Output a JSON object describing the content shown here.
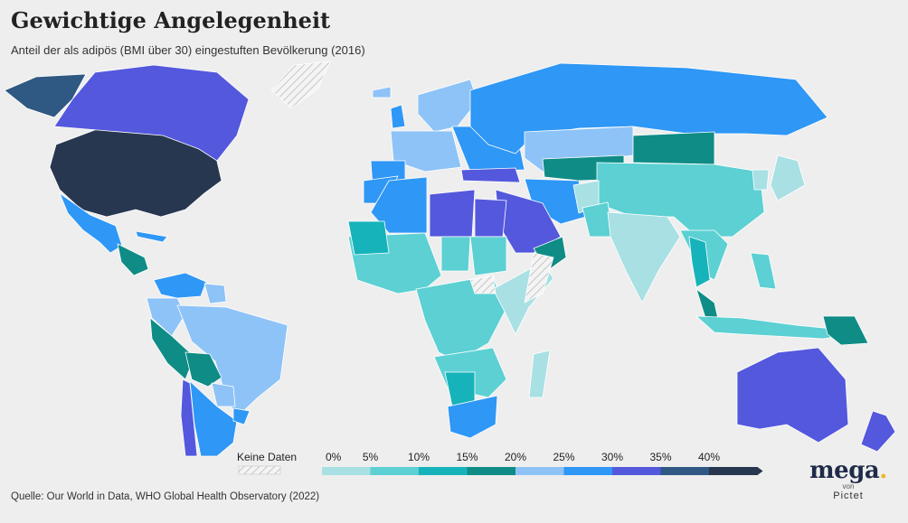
{
  "title": "Gewichtige Angelegenheit",
  "subtitle": "Anteil der als adipös (BMI über 30) eingestuften Bevölkerung (2016)",
  "source": "Quelle: Our World in Data, WHO Global Health Observatory (2022)",
  "legend": {
    "no_data_label": "Keine Daten",
    "ticks": [
      "0%",
      "5%",
      "10%",
      "15%",
      "20%",
      "25%",
      "30%",
      "35%",
      "40%"
    ],
    "colors": [
      "#a8e0e4",
      "#5cd0d3",
      "#17b3bb",
      "#0f8c86",
      "#8ec3f7",
      "#2f97f5",
      "#5458dd",
      "#2f5882",
      "#283750"
    ]
  },
  "logo": {
    "word": "mega",
    "dot": ".",
    "von": "von",
    "brand": "Pictet"
  },
  "regions": [
    {
      "name": "Nordamerika (USA)",
      "bin": 8
    },
    {
      "name": "Alaska",
      "bin": 7
    },
    {
      "name": "Kanada",
      "bin": 6
    },
    {
      "name": "Grönland",
      "bin": -1
    },
    {
      "name": "Mexiko",
      "bin": 5
    },
    {
      "name": "Zentralamerika",
      "bin": 3
    },
    {
      "name": "Kuba",
      "bin": 5
    },
    {
      "name": "Venezuela",
      "bin": 5
    },
    {
      "name": "Kolumbien",
      "bin": 4
    },
    {
      "name": "Guyana",
      "bin": 4
    },
    {
      "name": "Brasilien",
      "bin": 4
    },
    {
      "name": "Peru",
      "bin": 3
    },
    {
      "name": "Bolivien",
      "bin": 3
    },
    {
      "name": "Paraguay",
      "bin": 4
    },
    {
      "name": "Argentinien",
      "bin": 5
    },
    {
      "name": "Chile",
      "bin": 6
    },
    {
      "name": "Uruguay",
      "bin": 5
    },
    {
      "name": "Island",
      "bin": 4
    },
    {
      "name": "Großbritannien",
      "bin": 5
    },
    {
      "name": "Skandinavien",
      "bin": 4
    },
    {
      "name": "Westeuropa",
      "bin": 4
    },
    {
      "name": "Osteuropa",
      "bin": 5
    },
    {
      "name": "Spanien/Portugal",
      "bin": 5
    },
    {
      "name": "Türkei",
      "bin": 6
    },
    {
      "name": "Russland",
      "bin": 5
    },
    {
      "name": "Kasachstan",
      "bin": 4
    },
    {
      "name": "Zentralasien",
      "bin": 3
    },
    {
      "name": "Mongolei",
      "bin": 3
    },
    {
      "name": "China",
      "bin": 1
    },
    {
      "name": "Japan",
      "bin": 0
    },
    {
      "name": "Korea",
      "bin": 0
    },
    {
      "name": "Iran",
      "bin": 5
    },
    {
      "name": "Arabische Halbinsel",
      "bin": 6
    },
    {
      "name": "Oman",
      "bin": 3
    },
    {
      "name": "Afghanistan",
      "bin": 0
    },
    {
      "name": "Pakistan",
      "bin": 1
    },
    {
      "name": "Indien",
      "bin": 0
    },
    {
      "name": "Südostasien",
      "bin": 1
    },
    {
      "name": "Thailand",
      "bin": 2
    },
    {
      "name": "Malaysia",
      "bin": 3
    },
    {
      "name": "Indonesien",
      "bin": 1
    },
    {
      "name": "Philippinen",
      "bin": 1
    },
    {
      "name": "Papua-Neuguinea",
      "bin": 3
    },
    {
      "name": "Australien",
      "bin": 6
    },
    {
      "name": "Neuseeland",
      "bin": 6
    },
    {
      "name": "Marokko",
      "bin": 5
    },
    {
      "name": "Algerien",
      "bin": 5
    },
    {
      "name": "Libyen",
      "bin": 6
    },
    {
      "name": "Ägypten",
      "bin": 6
    },
    {
      "name": "Tschad",
      "bin": 1
    },
    {
      "name": "Sudan",
      "bin": 1
    },
    {
      "name": "Westafrika",
      "bin": 1
    },
    {
      "name": "Mauretanien",
      "bin": 2
    },
    {
      "name": "Zentralafrika",
      "bin": 1
    },
    {
      "name": "Ostafrika",
      "bin": 0
    },
    {
      "name": "Somalia",
      "bin": -1
    },
    {
      "name": "Südliches Afrika",
      "bin": 1
    },
    {
      "name": "Botswana",
      "bin": 2
    },
    {
      "name": "Südafrika",
      "bin": 5
    },
    {
      "name": "Madagaskar",
      "bin": 0
    },
    {
      "name": "Südsudan",
      "bin": -1
    }
  ]
}
